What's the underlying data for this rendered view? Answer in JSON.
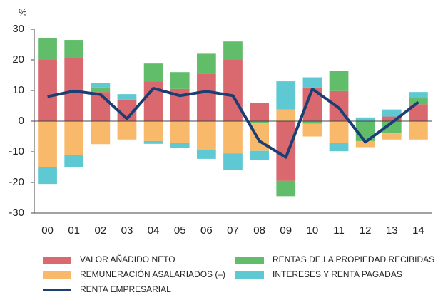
{
  "chart_data": {
    "type": "bar",
    "y_label": "%",
    "categories": [
      "00",
      "01",
      "02",
      "03",
      "04",
      "05",
      "06",
      "07",
      "08",
      "09",
      "10",
      "11",
      "12",
      "13",
      "14"
    ],
    "series": [
      {
        "name": "VALOR AÑADIDO NETO",
        "color": "#d9696f",
        "values": [
          20,
          20.5,
          9.5,
          7,
          13,
          10.5,
          15.5,
          20,
          6,
          -19.5,
          11,
          9.8,
          0,
          1.5,
          5.5
        ]
      },
      {
        "name": "RENTAS DE LA PROPIEDAD RECIBIDAS",
        "color": "#62bd6a",
        "values": [
          7,
          6,
          1.5,
          0,
          5.8,
          5.5,
          6.5,
          6,
          -0.7,
          -5,
          -0.8,
          6.5,
          -6.5,
          -4,
          2
        ]
      },
      {
        "name": "REMUNERACIÓN ASALARIADOS (–)",
        "color": "#f9b96a",
        "values": [
          -15,
          -11,
          -7.5,
          -6,
          -6.5,
          -7,
          -9.5,
          -10.5,
          -9,
          3.8,
          -4.2,
          -7,
          -2,
          -2,
          -6
        ]
      },
      {
        "name": "INTERESES Y RENTA PAGADAS",
        "color": "#5ec8d3",
        "values": [
          -5.5,
          -4,
          1.5,
          1.8,
          -0.9,
          -1.8,
          -2.8,
          -5.5,
          -2.9,
          9.2,
          3.3,
          -2.8,
          1.2,
          2.3,
          2
        ]
      },
      {
        "name": "RENTA EMPRESARIAL",
        "color": "#1b3f73",
        "type": "line",
        "values": [
          8,
          9.8,
          8.7,
          0.8,
          10.7,
          8.3,
          9.7,
          8.3,
          -6.5,
          -11.8,
          10.5,
          4.3,
          -6.8,
          -0.5,
          6.2
        ]
      }
    ],
    "ylim": [
      -30,
      30
    ],
    "yticks": [
      -30,
      -20,
      -10,
      0,
      10,
      20,
      30
    ],
    "grid": false
  }
}
